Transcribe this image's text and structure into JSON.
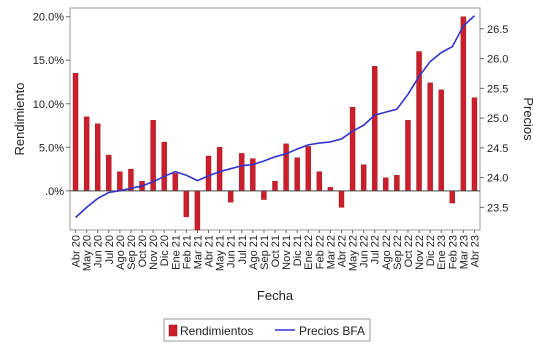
{
  "chart_data": {
    "type": "bar",
    "categories": [
      "Abr 20",
      "May 20",
      "Jun 20",
      "Jul 20",
      "Ago 20",
      "Sep 20",
      "Oct 20",
      "Nov 20",
      "Dic 20",
      "Ene 21",
      "Feb 21",
      "Mar 21",
      "Abr 21",
      "May 21",
      "Jun 21",
      "Jul 21",
      "Ago 21",
      "Sep 21",
      "Oct 21",
      "Nov 21",
      "Dic 21",
      "Ene 22",
      "Feb 22",
      "Mar 22",
      "Abr 22",
      "May 22",
      "Jun 22",
      "Jul 22",
      "Ago 22",
      "Sep 22",
      "Oct 22",
      "Nov 22",
      "Dic 22",
      "Ene 23",
      "Feb 23",
      "Mar 23",
      "Abr 23"
    ],
    "x_tick_labels": [
      "Abr 20",
      "May 20",
      "Jun 20",
      "Jul 20",
      "Ago 20",
      "Sep 20",
      "Oct 20",
      "Nov 20",
      "Dic 20",
      "Ene 21",
      "Feb 21",
      "Mar 21",
      "Abr 21",
      "May 21",
      "Jun 21",
      "Jul 21",
      "Ago 21",
      "Sep 21",
      "Oct 21",
      "Nov 21",
      "Dic 21",
      "Ene 22",
      "Feb 22",
      "Mar 22",
      "Abr 22",
      "May 22",
      "Jun 22",
      "Jul 22",
      "Ago 22",
      "Sep 22",
      "Oct 22",
      "Nov 22",
      "Dic 22",
      "Ene 23",
      "Feb 23",
      "Mar 23",
      "Abr 23"
    ],
    "xlabel": "Fecha",
    "ylabel": "Rendimiento",
    "y2label": "Precios",
    "ylim": [
      -0.045,
      0.21
    ],
    "y2lim": [
      23.12,
      26.85
    ],
    "yticks": [
      0.0,
      0.05,
      0.1,
      0.15,
      0.2
    ],
    "ytick_labels": [
      ".0%",
      "5.0%",
      "10.0%",
      "15.0%",
      "20.0%"
    ],
    "y2ticks": [
      23.5,
      24.0,
      24.5,
      25.0,
      25.5,
      26.0,
      26.5
    ],
    "y2tick_labels": [
      "23.5",
      "24.0",
      "24.5",
      "25.0",
      "25.5",
      "26.0",
      "26.5"
    ],
    "grid": false,
    "legend_position": "bottom-center",
    "series": [
      {
        "name": "Rendimientos",
        "type": "bar",
        "axis": "left",
        "color": "#cc1f2b",
        "values": [
          0.135,
          0.085,
          0.077,
          0.041,
          0.022,
          0.025,
          0.011,
          0.081,
          0.056,
          0.02,
          -0.03,
          -0.045,
          0.04,
          0.05,
          -0.013,
          0.043,
          0.037,
          -0.01,
          0.011,
          0.054,
          0.038,
          0.051,
          0.022,
          0.004,
          -0.019,
          0.096,
          0.03,
          0.143,
          0.015,
          0.018,
          0.081,
          0.16,
          0.124,
          0.116,
          -0.014,
          0.2,
          0.107
        ]
      },
      {
        "name": "Precios BFA",
        "type": "line",
        "axis": "right",
        "color": "#3333cc",
        "values": [
          23.33,
          23.5,
          23.65,
          23.75,
          23.78,
          23.82,
          23.86,
          23.93,
          24.02,
          24.1,
          24.04,
          23.95,
          24.03,
          24.1,
          24.15,
          24.2,
          24.22,
          24.28,
          24.35,
          24.4,
          24.48,
          24.55,
          24.58,
          24.6,
          24.65,
          24.78,
          24.88,
          25.05,
          25.1,
          25.15,
          25.4,
          25.7,
          25.95,
          26.1,
          26.2,
          26.55,
          26.72
        ]
      }
    ]
  }
}
